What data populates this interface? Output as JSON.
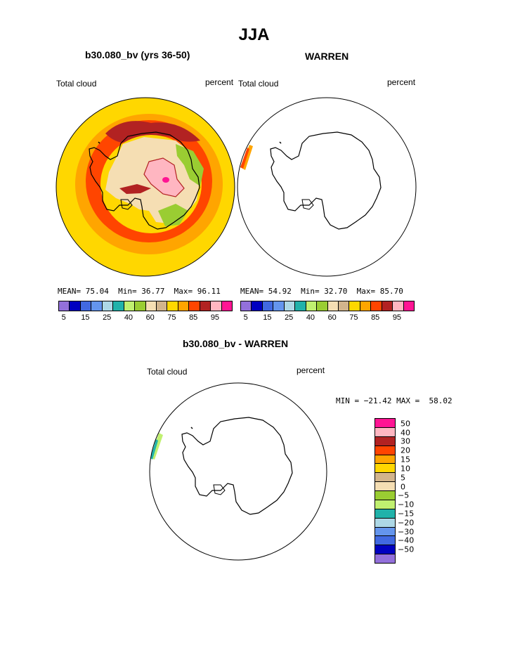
{
  "title": "JJA",
  "panels": [
    {
      "title": "b30.080_bv (yrs 36-50)",
      "left_label": "Total cloud",
      "right_label": "percent",
      "stats": {
        "mean_label": "MEAN=",
        "mean": "75.04",
        "min_label": "Min=",
        "min": "36.77",
        "max_label": "Max=",
        "max": "96.11"
      }
    },
    {
      "title": "WARREN",
      "left_label": "Total cloud",
      "right_label": "percent",
      "stats": {
        "mean_label": "MEAN=",
        "mean": "54.92",
        "min_label": "Min=",
        "min": "32.70",
        "max_label": "Max=",
        "max": "85.70"
      }
    },
    {
      "title": "b30.080_bv - WARREN",
      "left_label": "Total cloud",
      "right_label": "percent",
      "range_text": "MIN = −21.42 MAX =  58.02"
    }
  ],
  "colorbar_abs": {
    "colors": [
      "#9370db",
      "#0000c0",
      "#4169e1",
      "#6495ed",
      "#add8e6",
      "#20b2aa",
      "#c0f070",
      "#9acd32",
      "#f5deb3",
      "#d2b48c",
      "#ffd700",
      "#ffa500",
      "#ff4500",
      "#b22222",
      "#ffb6c1",
      "#ff1493"
    ],
    "tick_labels": [
      "5",
      "15",
      "25",
      "40",
      "60",
      "75",
      "85",
      "95"
    ]
  },
  "colorbar_diff": {
    "colors_top_to_bottom": [
      "#ff1493",
      "#ffb6c1",
      "#b22222",
      "#ff4500",
      "#ffa500",
      "#ffd700",
      "#d2b48c",
      "#f5deb3",
      "#9acd32",
      "#c0f070",
      "#20b2aa",
      "#add8e6",
      "#6495ed",
      "#4169e1",
      "#0000c0",
      "#9370db"
    ],
    "tick_labels_top_to_bottom": [
      "50",
      "40",
      "30",
      "20",
      "15",
      "10",
      "5",
      "0",
      "−5",
      "−10",
      "−15",
      "−20",
      "−30",
      "−40",
      "−50"
    ]
  },
  "chart_data": [
    {
      "type": "heatmap",
      "title": "b30.080_bv (yrs 36-50)",
      "variable": "Total cloud",
      "units": "percent",
      "season": "JJA",
      "mean": 75.04,
      "min": 36.77,
      "max": 96.11,
      "levels": [
        5,
        10,
        15,
        20,
        25,
        30,
        40,
        50,
        60,
        70,
        75,
        80,
        85,
        90,
        95
      ]
    },
    {
      "type": "heatmap",
      "title": "WARREN",
      "variable": "Total cloud",
      "units": "percent",
      "season": "JJA",
      "mean": 54.92,
      "min": 32.7,
      "max": 85.7,
      "levels": [
        5,
        10,
        15,
        20,
        25,
        30,
        40,
        50,
        60,
        70,
        75,
        80,
        85,
        90,
        95
      ]
    },
    {
      "type": "heatmap",
      "title": "b30.080_bv - WARREN",
      "variable": "Total cloud",
      "units": "percent",
      "season": "JJA",
      "min": -21.42,
      "max": 58.02,
      "levels": [
        -50,
        -40,
        -30,
        -20,
        -15,
        -10,
        -5,
        0,
        5,
        10,
        15,
        20,
        30,
        40,
        50
      ]
    }
  ]
}
